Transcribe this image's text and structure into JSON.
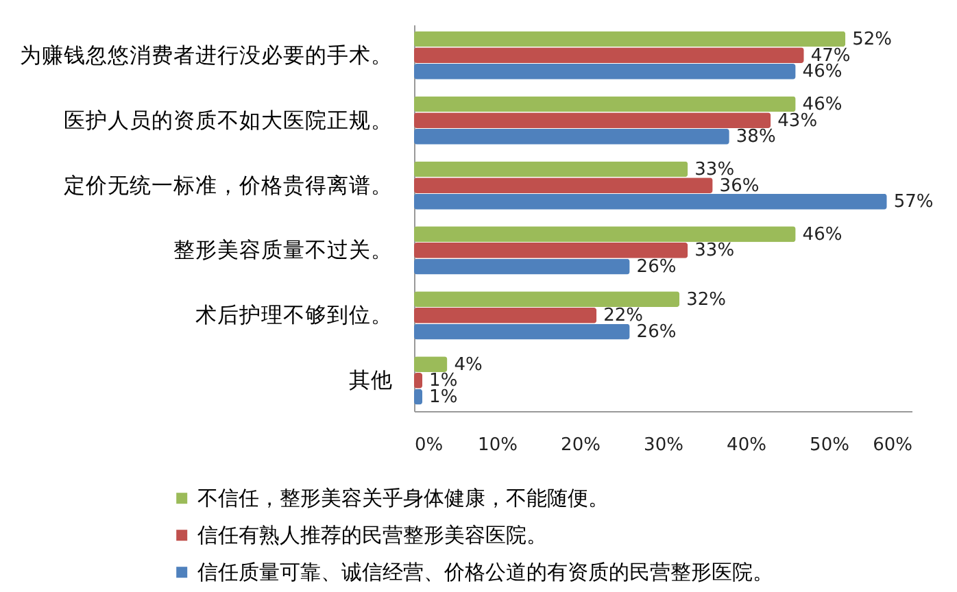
{
  "chart_data": {
    "type": "bar",
    "orientation": "horizontal",
    "categories": [
      "为赚钱忽悠消费者进行没必要的手术。",
      "医护人员的资质不如大医院正规。",
      "定价无统一标准，价格贵得离谱。",
      "整形美容质量不过关。",
      "术后护理不够到位。",
      "其他"
    ],
    "series": [
      {
        "name": "不信任，整形美容关乎身体健康，不能随便。",
        "color": "#9bbb59",
        "values": [
          52,
          46,
          33,
          46,
          32,
          4
        ],
        "value_labels": [
          "52%",
          "46%",
          "33%",
          "46%",
          "32%",
          "4%"
        ]
      },
      {
        "name": "信任有熟人推荐的民营整形美容医院。",
        "color": "#c0504d",
        "values": [
          47,
          43,
          36,
          33,
          22,
          1
        ],
        "value_labels": [
          "47%",
          "43%",
          "36%",
          "33%",
          "22%",
          "1%"
        ]
      },
      {
        "name": "信任质量可靠、诚信经营、价格公道的有资质的民营整形医院。",
        "color": "#4f81bd",
        "values": [
          46,
          38,
          57,
          26,
          26,
          1
        ],
        "value_labels": [
          "46%",
          "38%",
          "57%",
          "26%",
          "26%",
          "1%"
        ]
      }
    ],
    "xlim": [
      0,
      60
    ],
    "xticks": [
      {
        "value": 0,
        "label": "0%"
      },
      {
        "value": 10,
        "label": "10%"
      },
      {
        "value": 20,
        "label": "20%"
      },
      {
        "value": 30,
        "label": "30%"
      },
      {
        "value": 40,
        "label": "40%"
      },
      {
        "value": 50,
        "label": "50%"
      },
      {
        "value": 60,
        "label": "60%"
      }
    ],
    "legend": "bottom"
  }
}
